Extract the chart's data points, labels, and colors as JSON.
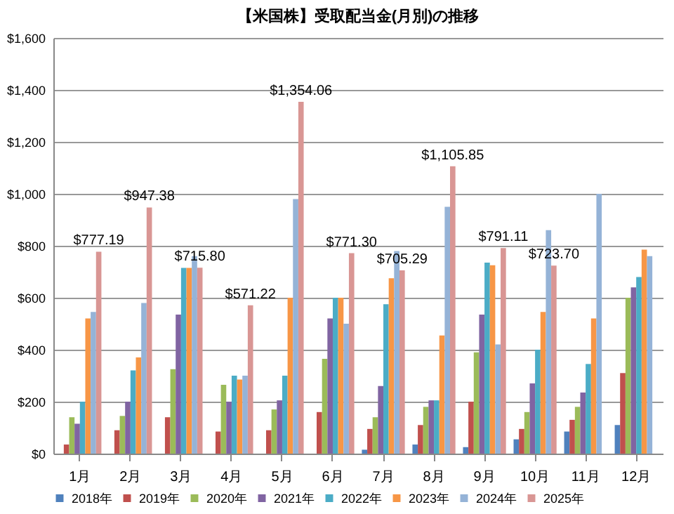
{
  "chart_data": {
    "type": "bar",
    "title": "【米国株】受取配当金(月別)の推移",
    "categories": [
      "1月",
      "2月",
      "3月",
      "4月",
      "5月",
      "6月",
      "7月",
      "8月",
      "9月",
      "10月",
      "11月",
      "12月"
    ],
    "series": [
      {
        "name": "2018年",
        "color": "#4f81bd",
        "values": [
          null,
          null,
          null,
          null,
          null,
          null,
          15,
          35,
          25,
          55,
          85,
          110
        ]
      },
      {
        "name": "2019年",
        "color": "#c0504d",
        "values": [
          35,
          90,
          140,
          85,
          90,
          160,
          95,
          110,
          200,
          95,
          130,
          310
        ]
      },
      {
        "name": "2020年",
        "color": "#9bbb59",
        "values": [
          140,
          145,
          325,
          265,
          170,
          365,
          140,
          180,
          390,
          160,
          180,
          600
        ]
      },
      {
        "name": "2021年",
        "color": "#8064a2",
        "values": [
          115,
          200,
          535,
          200,
          205,
          520,
          260,
          205,
          535,
          270,
          235,
          640
        ]
      },
      {
        "name": "2022年",
        "color": "#4bacc6",
        "values": [
          200,
          320,
          715,
          300,
          300,
          600,
          575,
          205,
          735,
          400,
          345,
          680
        ]
      },
      {
        "name": "2023年",
        "color": "#f79646",
        "values": [
          520,
          370,
          715,
          285,
          600,
          600,
          675,
          455,
          725,
          545,
          520,
          785
        ]
      },
      {
        "name": "2024年",
        "color": "#95b3d7",
        "values": [
          545,
          580,
          760,
          300,
          980,
          500,
          780,
          950,
          420,
          860,
          1000,
          760
        ]
      },
      {
        "name": "2025年",
        "color": "#d99694",
        "values": [
          777.19,
          947.38,
          715.8,
          571.22,
          1354.06,
          771.3,
          705.29,
          1105.85,
          791.11,
          723.7,
          null,
          null
        ],
        "value_labels": [
          "$777.19",
          "$947.38",
          "$715.80",
          "$571.22",
          "$1,354.06",
          "$771.30",
          "$705.29",
          "$1,105.85",
          "$791.11",
          "$723.70",
          null,
          null
        ]
      }
    ],
    "ylim": [
      0,
      1600
    ],
    "yticks": [
      {
        "value": 0,
        "label": "$0"
      },
      {
        "value": 200,
        "label": "$200"
      },
      {
        "value": 400,
        "label": "$400"
      },
      {
        "value": 600,
        "label": "$600"
      },
      {
        "value": 800,
        "label": "$800"
      },
      {
        "value": 1000,
        "label": "$1,000"
      },
      {
        "value": 1200,
        "label": "$1,200"
      },
      {
        "value": 1400,
        "label": "$1,400"
      },
      {
        "value": 1600,
        "label": "$1,600"
      }
    ],
    "grid": "y",
    "legend": "bottom"
  }
}
